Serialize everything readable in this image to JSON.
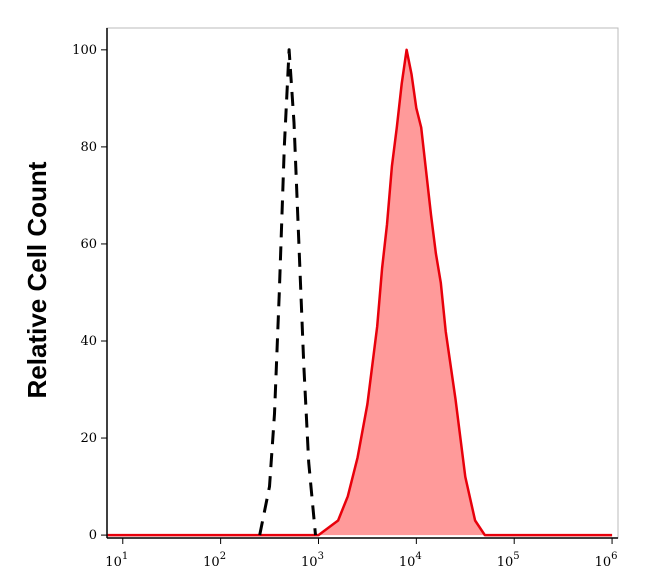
{
  "chart_data": {
    "type": "histogram-overlay",
    "y_label": "Relative Cell Count",
    "xscale": "log",
    "xlim": [
      6.9,
      1150000
    ],
    "ylim": [
      -0.6,
      104.5
    ],
    "xticks": [
      {
        "value": 10,
        "label": "10",
        "exponent": "1"
      },
      {
        "value": 100,
        "label": "10",
        "exponent": "2"
      },
      {
        "value": 1000,
        "label": "10",
        "exponent": "3"
      },
      {
        "value": 10000,
        "label": "10",
        "exponent": "4"
      },
      {
        "value": 100000,
        "label": "10",
        "exponent": "5"
      },
      {
        "value": 1000000,
        "label": "10",
        "exponent": "6"
      }
    ],
    "yticks": [
      0,
      20,
      40,
      60,
      80,
      100
    ],
    "series": [
      {
        "color": "#e8000b",
        "fill": "#ff9a9a",
        "dash": false,
        "x": [
          7,
          1000,
          1585,
          1995,
          2512,
          3162,
          3981,
          4467,
          5012,
          5623,
          6310,
          7079,
          7943,
          8913,
          10000,
          11220,
          12589,
          14125,
          15849,
          17783,
          19953,
          25119,
          31623,
          39811,
          50119,
          1000000
        ],
        "values": [
          0,
          0,
          3,
          8,
          16,
          27,
          43,
          55,
          64,
          76,
          84,
          93,
          100,
          95,
          88,
          84,
          75,
          66,
          58,
          52,
          42,
          28,
          12,
          3,
          0,
          0
        ]
      },
      {
        "color": "#000000",
        "fill": null,
        "dash": true,
        "x": [
          251,
          316,
          355,
          398,
          447,
          501,
          562,
          631,
          708,
          794,
          933
        ],
        "values": [
          0,
          10,
          25,
          50,
          80,
          100,
          85,
          60,
          35,
          15,
          0
        ]
      }
    ]
  }
}
